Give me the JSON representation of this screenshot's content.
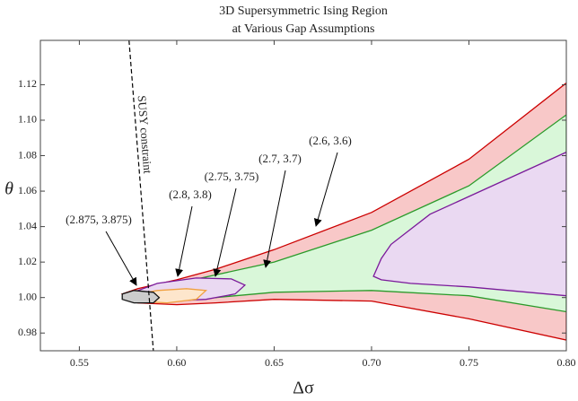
{
  "chart_data": {
    "type": "region",
    "title": [
      "3D Supersymmetric Ising Region",
      "at Various Gap Assumptions"
    ],
    "x_label": "Δσ",
    "y_label": "θ",
    "xlim": [
      0.53,
      0.8
    ],
    "ylim": [
      0.97,
      1.145
    ],
    "xticks": [
      0.55,
      {
        "value": 0.6,
        "label": "0.60"
      },
      0.65,
      {
        "value": 0.7,
        "label": "0.70"
      },
      0.75,
      {
        "value": 0.8,
        "label": "0.80"
      }
    ],
    "yticks": [
      0.98,
      {
        "value": 1,
        "label": "1.00"
      },
      1.02,
      1.04,
      1.06,
      1.08,
      {
        "value": 1.1,
        "label": "1.10"
      },
      1.12
    ],
    "series": [
      {
        "name": "(2.6, 3.6)",
        "color": "#f8c8c8",
        "edge": "#cc0000",
        "x": [
          0.572,
          0.58,
          0.6,
          0.62,
          0.65,
          0.7,
          0.75,
          0.8,
          0.8,
          0.75,
          0.7,
          0.65,
          0.62,
          0.6,
          0.58
        ],
        "y": [
          1.002,
          1.005,
          1.01,
          1.016,
          1.027,
          1.048,
          1.078,
          1.121,
          0.976,
          0.988,
          0.998,
          0.999,
          0.997,
          0.996,
          0.997
        ]
      },
      {
        "name": "(2.7, 3.7)",
        "color": "#d9f7d9",
        "edge": "#2a9a2a",
        "x": [
          0.574,
          0.6,
          0.65,
          0.7,
          0.75,
          0.8,
          0.8,
          0.75,
          0.7,
          0.65,
          0.62,
          0.6,
          0.58
        ],
        "y": [
          1.002,
          1.008,
          1.02,
          1.038,
          1.063,
          1.103,
          0.992,
          1.001,
          1.004,
          1.003,
          1.0,
          0.998,
          0.998
        ]
      },
      {
        "name": "(2.75, 3.75)",
        "color": "#ead9f2",
        "edge": "#7a1a9a",
        "x": [
          0.701,
          0.705,
          0.71,
          0.73,
          0.76,
          0.8,
          0.8,
          0.75,
          0.72,
          0.705,
          null,
          0.573,
          0.59,
          0.61,
          0.628,
          0.635,
          0.63,
          0.615,
          0.595,
          0.575
        ],
        "y": [
          1.012,
          1.022,
          1.03,
          1.047,
          1.062,
          1.082,
          1.001,
          1.006,
          1.008,
          1.01,
          null,
          1.001,
          1.008,
          1.011,
          1.0105,
          1.007,
          1.002,
          0.999,
          0.998,
          0.999
        ]
      },
      {
        "name": "(2.8, 3.8)",
        "color": "#fde6cc",
        "edge": "#f0a040",
        "x": [
          0.575,
          0.59,
          0.605,
          0.615,
          0.61,
          0.595,
          0.578
        ],
        "y": [
          1.001,
          1.004,
          1.005,
          1.004,
          0.999,
          0.997,
          0.998
        ]
      },
      {
        "name": "(2.875, 3.875)",
        "color": "#cccccc",
        "edge": "#111111",
        "x": [
          0.572,
          0.578,
          0.588,
          0.591,
          0.588,
          0.578,
          0.572
        ],
        "y": [
          1.002,
          1.004,
          1.003,
          1.0,
          0.997,
          0.997,
          0.999
        ]
      }
    ],
    "constraint": {
      "label": "SUSY constraint",
      "x": [
        0.5755,
        0.588
      ],
      "y": [
        1.145,
        0.97
      ]
    }
  }
}
